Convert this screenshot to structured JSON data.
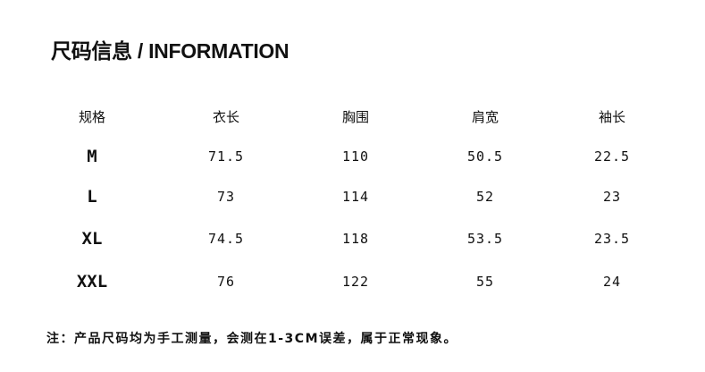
{
  "title": "尺码信息 / INFORMATION",
  "table": {
    "headers": [
      "规格",
      "衣长",
      "胸围",
      "肩宽",
      "袖长"
    ],
    "rows": [
      [
        "M",
        "71.5",
        "110",
        "50.5",
        "22.5"
      ],
      [
        "L",
        "73",
        "114",
        "52",
        "23"
      ],
      [
        "XL",
        "74.5",
        "118",
        "53.5",
        "23.5"
      ],
      [
        "XXL",
        "76",
        "122",
        "55",
        "24"
      ]
    ]
  },
  "note": "注：产品尺码均为手工测量，会测在1-3CM误差，属于正常现象。"
}
